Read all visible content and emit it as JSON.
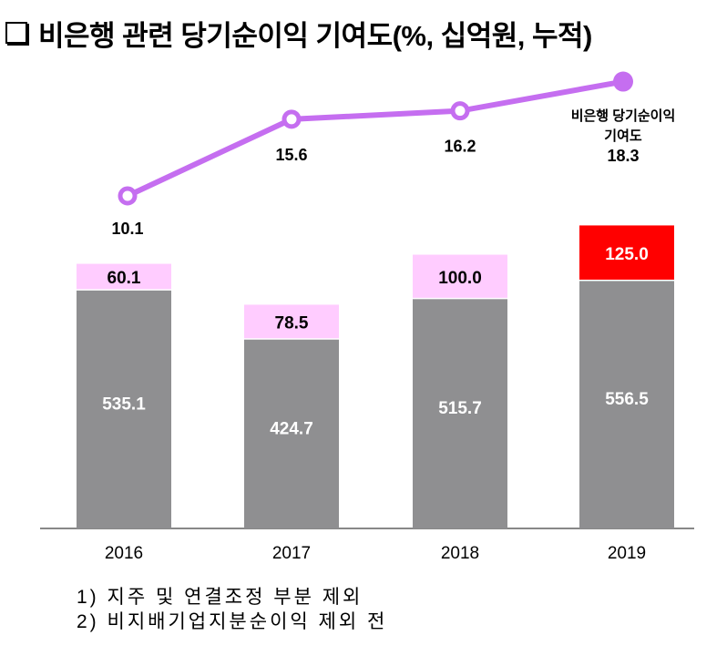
{
  "title": "비은행 관련 당기순이익 기여도(%, 십억원, 누적)",
  "chart_data": {
    "type": "bar",
    "stacked": true,
    "categories": [
      "2016",
      "2017",
      "2018",
      "2019"
    ],
    "series": [
      {
        "name": "base",
        "values": [
          535.1,
          424.7,
          515.7,
          556.5
        ],
        "color": "#8f8f91"
      },
      {
        "name": "increment",
        "values": [
          60.1,
          78.5,
          100.0,
          125.0
        ],
        "colors": [
          "#ffccff",
          "#ffccff",
          "#ffccff",
          "#ff0000"
        ]
      }
    ],
    "line": {
      "name": "비은행 당기순이익 기여도",
      "label_line1": "비은행 당기순이익",
      "label_line2": "기여도",
      "values": [
        10.1,
        15.6,
        16.2,
        18.3
      ],
      "color": "#c56ef0"
    },
    "value_labels_bar": [
      "535.1",
      "424.7",
      "515.7",
      "556.5"
    ],
    "value_labels_top": [
      "60.1",
      "78.5",
      "100.0",
      "125.0"
    ],
    "value_labels_line": [
      "10.1",
      "15.6",
      "16.2",
      "18.3"
    ],
    "xlabel": "",
    "ylabel": "",
    "grid": false
  },
  "notes": [
    "1) 지주 및 연결조정 부분 제외",
    "2) 비지배기업지분순이익 제외 전"
  ]
}
